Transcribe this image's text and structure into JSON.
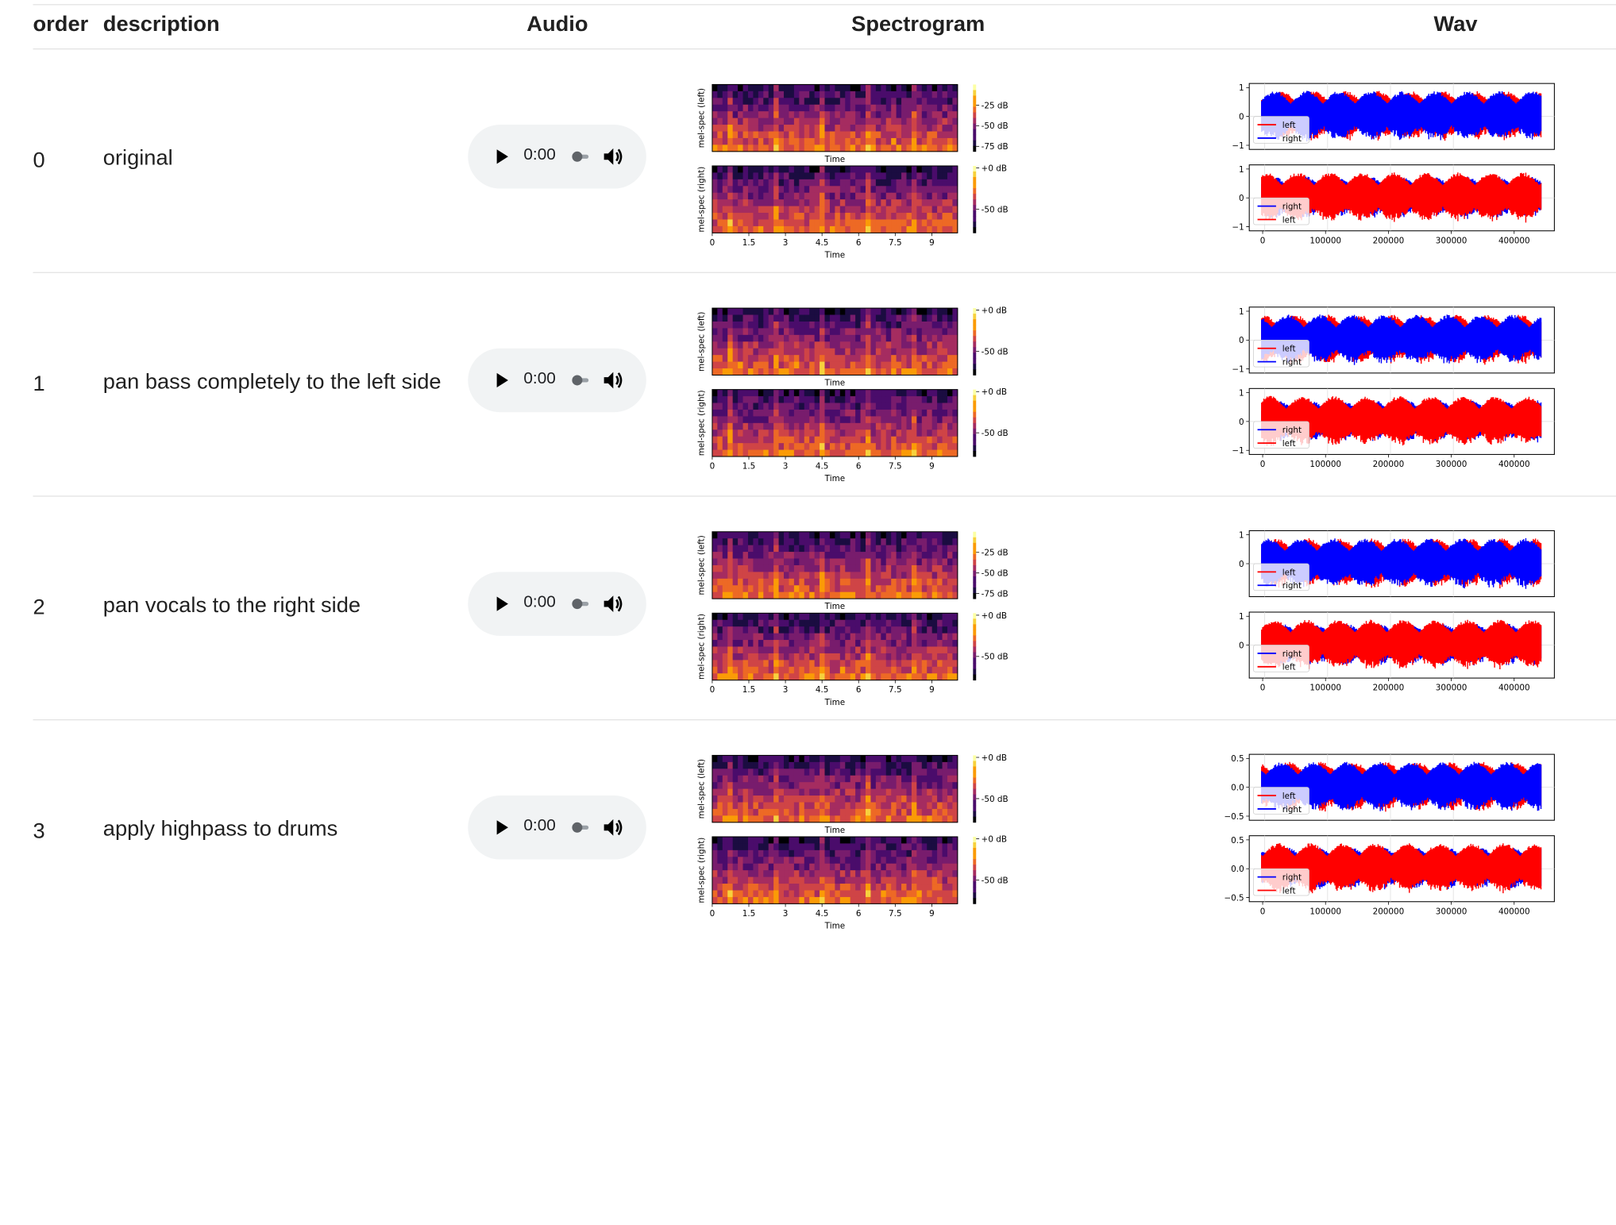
{
  "headers": {
    "order": "order",
    "description": "description",
    "audio": "Audio",
    "spectrogram": "Spectrogram",
    "wav": "Wav"
  },
  "rows": [
    {
      "order": "0",
      "description": "original",
      "time": "0:00",
      "spec_top_cbar": [
        "-25 dB",
        "-50 dB",
        "-75 dB"
      ],
      "spec_bot_cbar": [
        "+0 dB",
        "-50 dB"
      ],
      "wav_top_legend": [
        "left",
        "right"
      ],
      "wav_bot_legend": [
        "right",
        "left"
      ],
      "wav_top_yticks": [
        "1",
        "0",
        "−1"
      ],
      "wav_bot_yticks": [
        "1",
        "0",
        "−1"
      ]
    },
    {
      "order": "1",
      "description": "pan bass completely to the left side",
      "time": "0:00",
      "spec_top_cbar": [
        "+0 dB",
        "-50 dB"
      ],
      "spec_bot_cbar": [
        "+0 dB",
        "-50 dB"
      ],
      "wav_top_legend": [
        "left",
        "right"
      ],
      "wav_bot_legend": [
        "right",
        "left"
      ],
      "wav_top_yticks": [
        "1",
        "0",
        "−1"
      ],
      "wav_bot_yticks": [
        "1",
        "0",
        "−1"
      ]
    },
    {
      "order": "2",
      "description": "pan vocals to the right side",
      "time": "0:00",
      "spec_top_cbar": [
        "-25 dB",
        "-50 dB",
        "-75 dB"
      ],
      "spec_bot_cbar": [
        "+0 dB",
        "-50 dB"
      ],
      "wav_top_legend": [
        "left",
        "right"
      ],
      "wav_bot_legend": [
        "right",
        "left"
      ],
      "wav_top_yticks": [
        "1",
        "0"
      ],
      "wav_bot_yticks": [
        "1",
        "0"
      ]
    },
    {
      "order": "3",
      "description": "apply highpass to drums",
      "time": "0:00",
      "spec_top_cbar": [
        "+0 dB",
        "-50 dB"
      ],
      "spec_bot_cbar": [
        "+0 dB",
        "-50 dB"
      ],
      "wav_top_legend": [
        "left",
        "right"
      ],
      "wav_bot_legend": [
        "right",
        "left"
      ],
      "wav_top_yticks": [
        "0.5",
        "0.0",
        "−0.5"
      ],
      "wav_bot_yticks": [
        "0.5",
        "0.0",
        "−0.5"
      ]
    }
  ],
  "spec_labels": {
    "ylabel_top": "mel-spec (left)",
    "ylabel_bottom": "mel-spec (right)",
    "xlabel": "Time",
    "xticks": [
      "0",
      "1.5",
      "3",
      "4.5",
      "6",
      "7.5",
      "9"
    ]
  },
  "wav_labels": {
    "xticks": [
      "0",
      "100000",
      "200000",
      "300000",
      "400000"
    ]
  },
  "colors": {
    "left_channel": "#ff0000",
    "right_channel": "#0000ff",
    "player_bg": "#f1f3f4",
    "divider": "#e3e3e3"
  },
  "icons": {
    "play": "play-icon",
    "volume": "volume-icon"
  }
}
